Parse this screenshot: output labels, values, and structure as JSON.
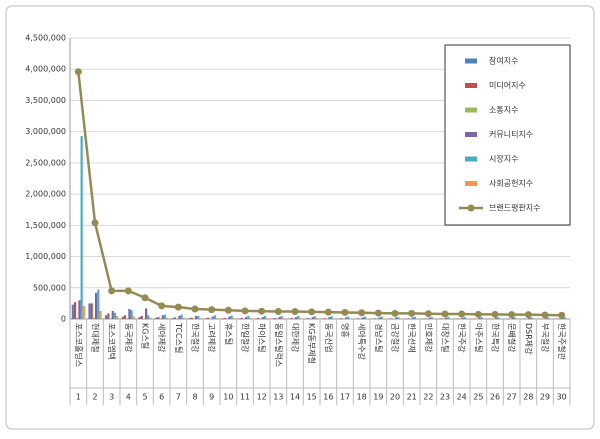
{
  "chart_data": {
    "type": "bar_line",
    "categories": [
      "포스코홀딩스",
      "현대제철",
      "포스코엠텍",
      "동국제강",
      "KG스틸",
      "세아제강",
      "TCC스틸",
      "한국철강",
      "고려제강",
      "휴스틸",
      "한일철강",
      "하이스틸",
      "동일스틸럭스",
      "대한제강",
      "KG동부제철",
      "동국산업",
      "영흥",
      "세아특수강",
      "경남스틸",
      "금강철강",
      "한국선재",
      "만호제강",
      "대창스틸",
      "한국주강",
      "아주스틸",
      "한국특강",
      "문배철강",
      "DSR제강",
      "부국철강",
      "한국주철관"
    ],
    "ranks": [
      1,
      2,
      3,
      4,
      5,
      6,
      7,
      8,
      9,
      10,
      11,
      12,
      13,
      14,
      15,
      16,
      17,
      18,
      19,
      20,
      21,
      22,
      23,
      24,
      25,
      26,
      27,
      28,
      29,
      30
    ],
    "series": [
      {
        "name": "참여지수",
        "type": "bar",
        "color": "#4f81bd",
        "values": [
          230000,
          250000,
          60000,
          40000,
          30000,
          20000,
          15000,
          15000,
          12000,
          12000,
          10000,
          10000,
          10000,
          9000,
          9000,
          8000,
          8000,
          8000,
          7000,
          7000,
          7000,
          6000,
          6000,
          6000,
          5000,
          5000,
          5000,
          5000,
          4000,
          4000
        ]
      },
      {
        "name": "미디어지수",
        "type": "bar",
        "color": "#c0504d",
        "values": [
          270000,
          250000,
          90000,
          60000,
          50000,
          30000,
          25000,
          20000,
          20000,
          18000,
          17000,
          16000,
          15000,
          15000,
          14000,
          13000,
          12000,
          12000,
          11000,
          11000,
          10000,
          10000,
          9000,
          9000,
          8000,
          8000,
          8000,
          7000,
          7000,
          6000
        ]
      },
      {
        "name": "소통지수",
        "type": "bar",
        "color": "#9bbb59",
        "values": [
          20000,
          20000,
          10000,
          10000,
          8000,
          6000,
          5000,
          5000,
          5000,
          4000,
          4000,
          4000,
          4000,
          3000,
          3000,
          3000,
          3000,
          3000,
          3000,
          3000,
          2000,
          2000,
          2000,
          2000,
          2000,
          2000,
          2000,
          2000,
          2000,
          2000
        ]
      },
      {
        "name": "커뮤니티지수",
        "type": "bar",
        "color": "#8064a2",
        "values": [
          300000,
          420000,
          130000,
          160000,
          170000,
          60000,
          50000,
          50000,
          40000,
          40000,
          30000,
          30000,
          30000,
          30000,
          30000,
          30000,
          25000,
          25000,
          25000,
          25000,
          25000,
          20000,
          20000,
          20000,
          20000,
          20000,
          20000,
          20000,
          15000,
          15000
        ]
      },
      {
        "name": "시장지수",
        "type": "bar",
        "color": "#4bacc6",
        "values": [
          2930000,
          470000,
          100000,
          140000,
          60000,
          70000,
          70000,
          50000,
          60000,
          55000,
          50000,
          50000,
          50000,
          50000,
          45000,
          45000,
          40000,
          40000,
          40000,
          35000,
          35000,
          35000,
          35000,
          30000,
          30000,
          30000,
          25000,
          25000,
          25000,
          25000
        ]
      },
      {
        "name": "사회공헌지수",
        "type": "bar",
        "color": "#f79646",
        "values": [
          210000,
          130000,
          50000,
          40000,
          20000,
          20000,
          20000,
          15000,
          15000,
          15000,
          15000,
          15000,
          15000,
          15000,
          15000,
          10000,
          10000,
          10000,
          10000,
          10000,
          10000,
          10000,
          10000,
          10000,
          10000,
          10000,
          10000,
          10000,
          10000,
          10000
        ]
      },
      {
        "name": "브랜드평판지수",
        "type": "line",
        "color": "#948a54",
        "values": [
          3960000,
          1540000,
          450000,
          450000,
          340000,
          210000,
          190000,
          160000,
          150000,
          140000,
          130000,
          125000,
          120000,
          120000,
          115000,
          110000,
          105000,
          100000,
          95000,
          90000,
          90000,
          85000,
          80000,
          80000,
          75000,
          75000,
          70000,
          70000,
          65000,
          60000
        ]
      }
    ],
    "ylim": [
      0,
      4500000
    ],
    "yticks": [
      0,
      {
        "value": 500000,
        "label": "500,000"
      },
      {
        "value": 1000000,
        "label": "1,000,000"
      },
      {
        "value": 1500000,
        "label": "1,500,000"
      },
      {
        "value": 2000000,
        "label": "2,000,000"
      },
      {
        "value": 2500000,
        "label": "2,500,000"
      },
      {
        "value": 3000000,
        "label": "3,000,000"
      },
      {
        "value": 3500000,
        "label": "3,500,000"
      },
      {
        "value": 4000000,
        "label": "4,000,000"
      },
      {
        "value": 4500000,
        "label": "4,500,000"
      }
    ],
    "grid": true,
    "legend": "upper right"
  }
}
